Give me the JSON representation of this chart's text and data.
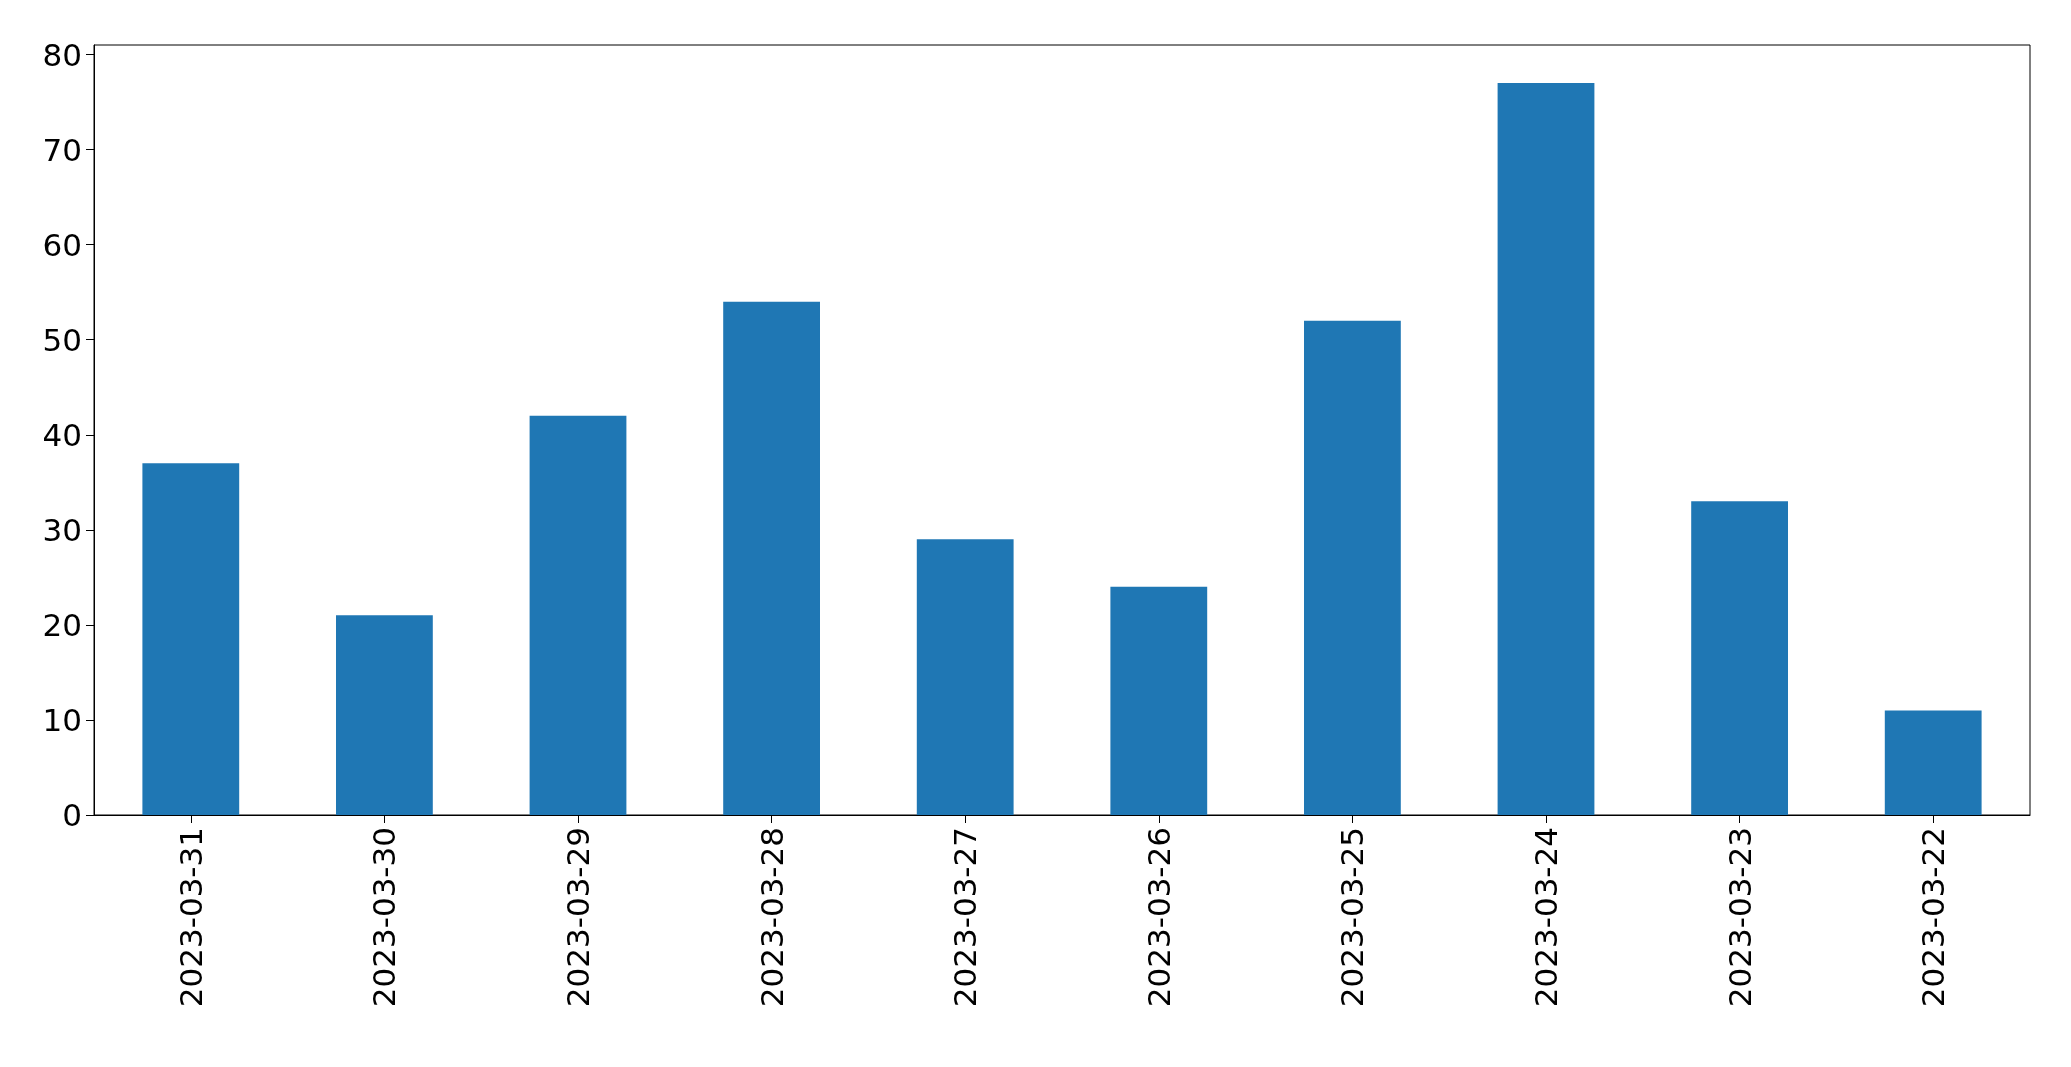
{
  "chart_data": {
    "type": "bar",
    "categories": [
      "2023-03-31",
      "2023-03-30",
      "2023-03-29",
      "2023-03-28",
      "2023-03-27",
      "2023-03-26",
      "2023-03-25",
      "2023-03-24",
      "2023-03-23",
      "2023-03-22"
    ],
    "values": [
      37,
      21,
      42,
      54,
      29,
      24,
      52,
      77,
      33,
      11
    ],
    "color": "#1f77b4",
    "ylim": [
      0,
      81
    ],
    "yticks": [
      0,
      10,
      20,
      30,
      40,
      50,
      60,
      70,
      80
    ],
    "grid": false
  }
}
